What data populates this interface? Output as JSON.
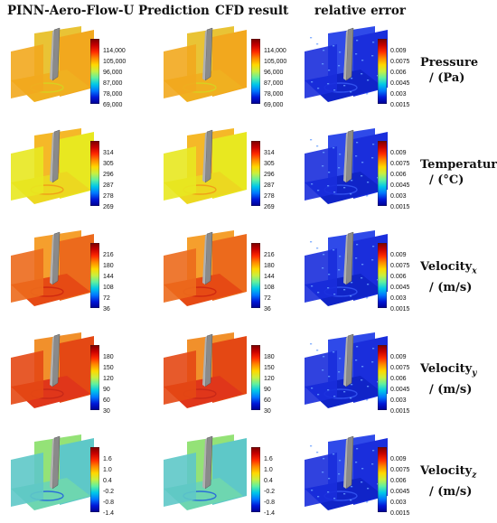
{
  "columns": [
    "PINN-Aero-Flow-U Prediction",
    "CFD result",
    "relative error"
  ],
  "rows": [
    {
      "name": "Pressure",
      "sub": "",
      "unit": "/ (Pa)",
      "ticks": [
        "114,000",
        "105,000",
        "96,000",
        "87,000",
        "78,000",
        "69,000"
      ],
      "error_ticks": [
        "0.009",
        "0.0075",
        "0.006",
        "0.0045",
        "0.003",
        "0.0015"
      ],
      "field": "pressure"
    },
    {
      "name": "Temperature",
      "sub": "",
      "unit": "/ (°C)",
      "ticks": [
        "314",
        "305",
        "296",
        "287",
        "278",
        "269"
      ],
      "error_ticks": [
        "0.009",
        "0.0075",
        "0.006",
        "0.0045",
        "0.003",
        "0.0015"
      ],
      "field": "temperature"
    },
    {
      "name": "Velocity",
      "sub": "x",
      "unit": "/ (m/s)",
      "ticks": [
        "216",
        "180",
        "144",
        "108",
        "72",
        "36"
      ],
      "error_ticks": [
        "0.009",
        "0.0075",
        "0.006",
        "0.0045",
        "0.003",
        "0.0015"
      ],
      "field": "velocity_x"
    },
    {
      "name": "Velocity",
      "sub": "y",
      "unit": "/ (m/s)",
      "ticks": [
        "180",
        "150",
        "120",
        "90",
        "60",
        "30"
      ],
      "error_ticks": [
        "0.009",
        "0.0075",
        "0.006",
        "0.0045",
        "0.003",
        "0.0015"
      ],
      "field": "velocity_y"
    },
    {
      "name": "Velocity",
      "sub": "z",
      "unit": "/ (m/s)",
      "ticks": [
        "1.6",
        "1.0",
        "0.4",
        "-0.2",
        "-0.8",
        "-1.4"
      ],
      "error_ticks": [
        "0.009",
        "0.0075",
        "0.006",
        "0.0045",
        "0.003",
        "0.0015"
      ],
      "field": "velocity_z"
    }
  ],
  "colors": {
    "pressure": {
      "plane": "#f2a81e",
      "alt": "#e8c02a",
      "floor": "#f0b020",
      "ring": "#d8d020"
    },
    "temperature": {
      "plane": "#e8e820",
      "alt": "#f4b41c",
      "floor": "#ecd820",
      "ring": "#f0a018"
    },
    "velocity_x": {
      "plane": "#ec6a1c",
      "alt": "#f49a22",
      "floor": "#e64a14",
      "ring": "#d02810"
    },
    "velocity_y": {
      "plane": "#e44814",
      "alt": "#f08a20",
      "floor": "#e0361a",
      "ring": "#c82818"
    },
    "velocity_z": {
      "plane": "#5ec8c8",
      "alt": "#8ee070",
      "floor": "#6ed6b0",
      "ring": "#2a6ed8"
    },
    "error": {
      "plane": "#1a2edc",
      "alt": "#2440e8",
      "floor": "#1024c8",
      "ring": "#3050ee"
    }
  }
}
